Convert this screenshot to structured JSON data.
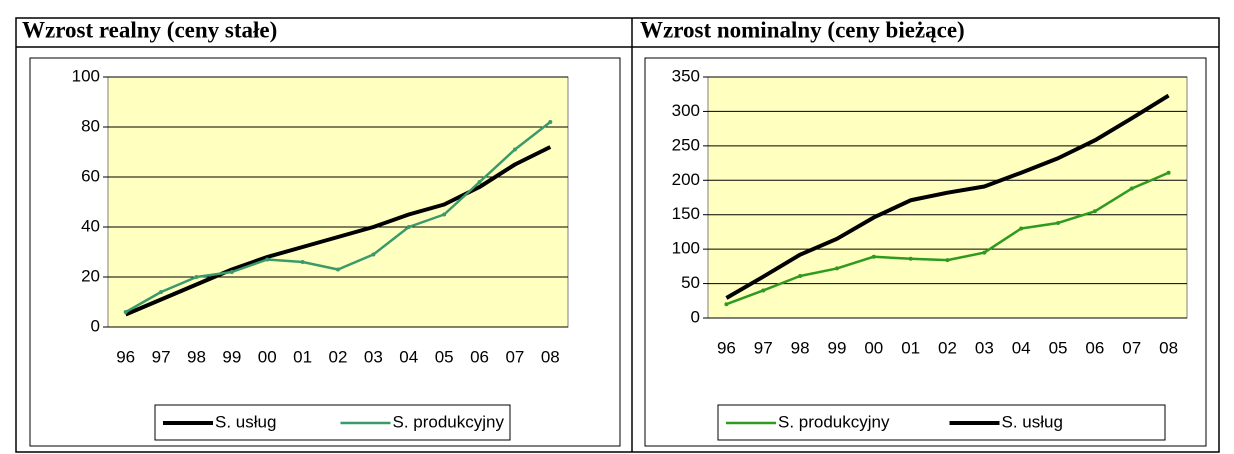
{
  "chart_data": [
    {
      "type": "line",
      "title": "Wzrost realny (ceny stałe)",
      "categories": [
        "96",
        "97",
        "98",
        "99",
        "00",
        "01",
        "02",
        "03",
        "04",
        "05",
        "06",
        "07",
        "08"
      ],
      "series": [
        {
          "name": "S. usług",
          "color": "#000000",
          "values": [
            5,
            11,
            17,
            23,
            28,
            32,
            36,
            40,
            45,
            49,
            56,
            65,
            72
          ]
        },
        {
          "name": "S. produkcyjny",
          "color": "#3a9a6a",
          "values": [
            6,
            14,
            20,
            22,
            27,
            26,
            23,
            29,
            40,
            45,
            58,
            71,
            82
          ]
        }
      ],
      "ylim": [
        0,
        100
      ],
      "yticks": [
        0,
        20,
        40,
        60,
        80,
        100
      ],
      "grid": true,
      "legend": "bottom"
    },
    {
      "type": "line",
      "title": "Wzrost nominalny (ceny bieżące)",
      "categories": [
        "96",
        "97",
        "98",
        "99",
        "00",
        "01",
        "02",
        "03",
        "04",
        "05",
        "06",
        "07",
        "08"
      ],
      "series": [
        {
          "name": "S. produkcyjny",
          "color": "#2e9a1e",
          "values": [
            20,
            40,
            61,
            72,
            89,
            86,
            84,
            95,
            130,
            138,
            155,
            188,
            211
          ]
        },
        {
          "name": "S. usług",
          "color": "#000000",
          "values": [
            29,
            60,
            92,
            115,
            146,
            171,
            182,
            191,
            211,
            232,
            258,
            290,
            323
          ]
        }
      ],
      "ylim": [
        0,
        350
      ],
      "yticks": [
        0,
        50,
        100,
        150,
        200,
        250,
        300,
        350
      ],
      "grid": true,
      "legend": "bottom"
    }
  ]
}
